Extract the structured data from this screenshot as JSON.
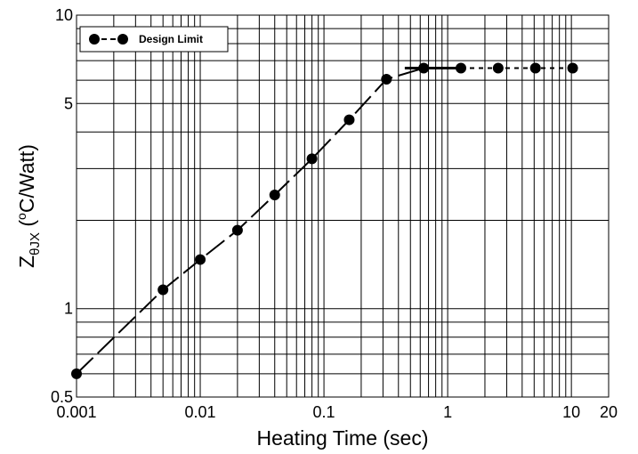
{
  "chart_data": {
    "type": "line",
    "xscale": "log",
    "yscale": "log",
    "xlim": [
      0.001,
      20
    ],
    "ylim": [
      0.5,
      10
    ],
    "xlabel": "Heating Time (sec)",
    "ylabel": {
      "main": "Z",
      "subscript": "θJX",
      "unit_open": " (",
      "unit_sup": "o",
      "unit_rest": "C/Watt)"
    },
    "x_ticks": [
      {
        "value": 0.001,
        "label": "0.001"
      },
      {
        "value": 0.01,
        "label": "0.01"
      },
      {
        "value": 0.1,
        "label": "0.1"
      },
      {
        "value": 1,
        "label": "1"
      },
      {
        "value": 10,
        "label": "10"
      },
      {
        "value": 20,
        "label": "20"
      }
    ],
    "y_ticks": [
      {
        "value": 0.5,
        "label": "0.5"
      },
      {
        "value": 1,
        "label": "1"
      },
      {
        "value": 5,
        "label": "5"
      },
      {
        "value": 10,
        "label": "10"
      }
    ],
    "grid": true,
    "legend": {
      "placement": "top-left",
      "entries": [
        "Design Limit"
      ]
    },
    "series": [
      {
        "name": "Design Limit",
        "x": [
          0.001,
          0.005,
          0.01,
          0.02,
          0.04,
          0.08,
          0.16,
          0.32,
          0.64,
          1.28,
          2.56,
          5.12,
          10.24
        ],
        "y": [
          0.6,
          1.16,
          1.47,
          1.85,
          2.44,
          3.24,
          4.4,
          6.05,
          6.6,
          6.6,
          6.6,
          6.6,
          6.6
        ]
      }
    ]
  }
}
